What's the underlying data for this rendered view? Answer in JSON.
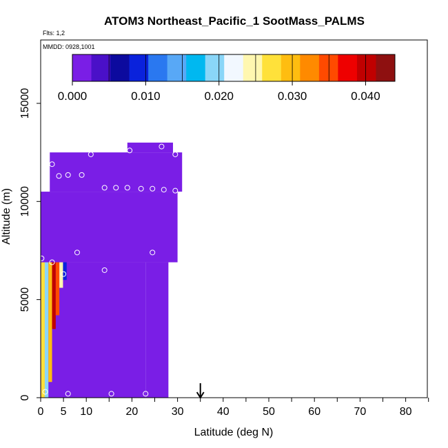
{
  "chart_data": {
    "type": "heatmap",
    "title": "ATOM3 Northeast_Pacific_1 SootMass_PALMS",
    "subtitle_flights": "Flts: 1,2",
    "subtitle_dates": "MMDD: 0928,1001",
    "xlabel": "Latitude (deg N)",
    "ylabel": "Altitude (m)",
    "xlim": [
      0,
      85
    ],
    "ylim": [
      0,
      17500
    ],
    "x_ticks": [
      0,
      5,
      10,
      20,
      30,
      40,
      50,
      60,
      70,
      80
    ],
    "x_minor_ticks": [
      15,
      25,
      35,
      45,
      55,
      65,
      75,
      85
    ],
    "y_ticks": [
      0,
      5000,
      10000,
      15000
    ],
    "colorbar": {
      "min": 0.0,
      "max": 0.044,
      "tick_labels": [
        "0.000",
        "0.010",
        "0.020",
        "0.030",
        "0.040"
      ],
      "tick_values": [
        0.0,
        0.01,
        0.02,
        0.03,
        0.04
      ],
      "colors": [
        "#7a1ee6",
        "#4a10c8",
        "#0c0a9e",
        "#0a22dc",
        "#2a78f0",
        "#58a8f6",
        "#00b8f0",
        "#8ad6f8",
        "#f2f8ff",
        "#fff7b0",
        "#ffe13a",
        "#ffbd10",
        "#ff8a00",
        "#ff4a00",
        "#ee0000",
        "#c00000",
        "#8e1010"
      ]
    },
    "arrow_latitude": 35,
    "field": [
      {
        "lat0": 0,
        "lat1": 23,
        "alt0": 0,
        "alt1": 6900,
        "value": 0.0005
      },
      {
        "lat0": 23,
        "lat1": 28,
        "alt0": 0,
        "alt1": 6900,
        "value": 0.0005
      },
      {
        "lat0": 0,
        "lat1": 30,
        "alt0": 6900,
        "alt1": 10500,
        "value": 0.0012
      },
      {
        "lat0": 2,
        "lat1": 31,
        "alt0": 10500,
        "alt1": 12500,
        "value": 0.0008
      },
      {
        "lat0": 19,
        "lat1": 29,
        "alt0": 12500,
        "alt1": 13000,
        "value": 0.0005
      }
    ],
    "hot_column": [
      {
        "lat": 0.5,
        "alt0": 0,
        "alt1": 6900,
        "value": 0.028
      },
      {
        "lat": 1.3,
        "alt0": 0,
        "alt1": 6900,
        "value": 0.019
      },
      {
        "lat": 2.1,
        "alt0": 800,
        "alt1": 6900,
        "value": 0.03
      },
      {
        "lat": 2.9,
        "alt0": 3500,
        "alt1": 6900,
        "value": 0.04
      },
      {
        "lat": 3.7,
        "alt0": 4200,
        "alt1": 6900,
        "value": 0.034
      },
      {
        "lat": 4.5,
        "alt0": 5600,
        "alt1": 6900,
        "value": 0.025
      },
      {
        "lat": 5.3,
        "alt0": 6000,
        "alt1": 6900,
        "value": 0.008
      }
    ],
    "sample_points": [
      {
        "lat": 0.2,
        "alt": 7100
      },
      {
        "lat": 2.5,
        "alt": 6900
      },
      {
        "lat": 5,
        "alt": 6300
      },
      {
        "lat": 1,
        "alt": 300
      },
      {
        "lat": 6,
        "alt": 200
      },
      {
        "lat": 15.5,
        "alt": 200
      },
      {
        "lat": 23,
        "alt": 200
      },
      {
        "lat": 8,
        "alt": 7400
      },
      {
        "lat": 14,
        "alt": 6500
      },
      {
        "lat": 24.5,
        "alt": 7400
      },
      {
        "lat": 2.5,
        "alt": 11900
      },
      {
        "lat": 4,
        "alt": 11300
      },
      {
        "lat": 6,
        "alt": 11350
      },
      {
        "lat": 9,
        "alt": 11350
      },
      {
        "lat": 11,
        "alt": 12400
      },
      {
        "lat": 19.5,
        "alt": 12600
      },
      {
        "lat": 26.5,
        "alt": 12800
      },
      {
        "lat": 29.5,
        "alt": 12400
      },
      {
        "lat": 14,
        "alt": 10700
      },
      {
        "lat": 16.5,
        "alt": 10700
      },
      {
        "lat": 19,
        "alt": 10700
      },
      {
        "lat": 22,
        "alt": 10650
      },
      {
        "lat": 24.5,
        "alt": 10650
      },
      {
        "lat": 27,
        "alt": 10600
      },
      {
        "lat": 29.5,
        "alt": 10550
      }
    ]
  }
}
